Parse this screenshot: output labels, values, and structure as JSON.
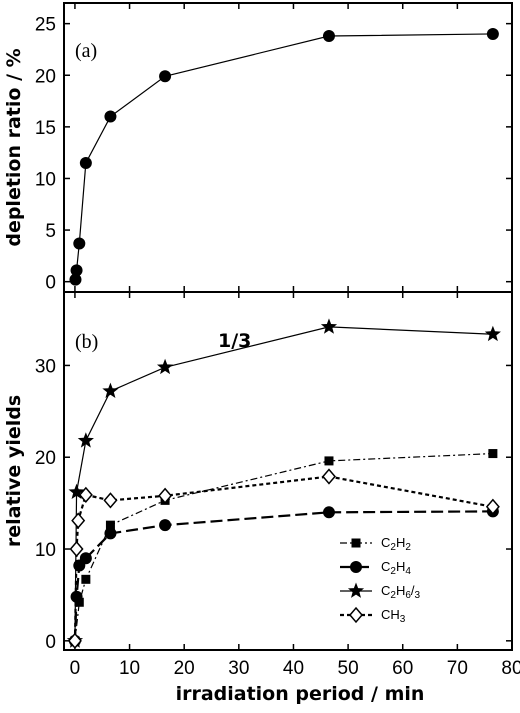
{
  "chart_data": [
    {
      "type": "line",
      "panel_label": "(a)",
      "ylabel": "depletion ratio / %",
      "xlim": [
        -2,
        80
      ],
      "ylim": [
        -1,
        27
      ],
      "yticks": [
        0,
        5,
        10,
        15,
        20,
        25
      ],
      "series": [
        {
          "marker": "circle",
          "line": "solid",
          "x": [
            0.1,
            0.3,
            0.8,
            2,
            6.5,
            16.5,
            46.5,
            76.5
          ],
          "y": [
            0.2,
            1.1,
            3.7,
            11.5,
            16,
            19.9,
            23.8,
            24
          ]
        }
      ]
    },
    {
      "type": "line",
      "panel_label": "(b)",
      "ylabel": "relative yields",
      "xlabel": "irradiation period / min",
      "annotation": "1/3",
      "xlim": [
        -2,
        80
      ],
      "ylim": [
        -1,
        38
      ],
      "yticks": [
        0,
        10,
        20,
        30
      ],
      "xticks": [
        0,
        10,
        20,
        30,
        40,
        50,
        60,
        70,
        80
      ],
      "legend_position": "lower-center",
      "series": [
        {
          "name": "C2H2",
          "marker": "square",
          "line": "dashdot",
          "x": [
            0,
            0.8,
            2,
            6.5,
            16.5,
            46.5,
            76.5
          ],
          "y": [
            0,
            4.2,
            6.7,
            12.6,
            15.3,
            19.6,
            20.4
          ]
        },
        {
          "name": "C2H4",
          "marker": "circle",
          "line": "longdash",
          "x": [
            0,
            0.3,
            0.8,
            2,
            6.5,
            16.5,
            46.5,
            76.5
          ],
          "y": [
            0,
            4.8,
            8.2,
            9,
            11.7,
            12.6,
            14,
            14.1
          ]
        },
        {
          "name": "C2H6/3",
          "marker": "star",
          "line": "solid",
          "x": [
            0,
            0.3,
            2,
            6.5,
            16.5,
            46.5,
            76.5
          ],
          "y": [
            0,
            16.2,
            21.8,
            27.2,
            29.8,
            34.2,
            33.4
          ]
        },
        {
          "name": "CH3",
          "marker": "diamond",
          "line": "dotted",
          "x": [
            0,
            0.3,
            0.6,
            2,
            6.5,
            16.5,
            46.5,
            76.5
          ],
          "y": [
            0,
            10,
            13.1,
            15.9,
            15.3,
            15.8,
            17.9,
            14.6
          ]
        }
      ]
    }
  ]
}
